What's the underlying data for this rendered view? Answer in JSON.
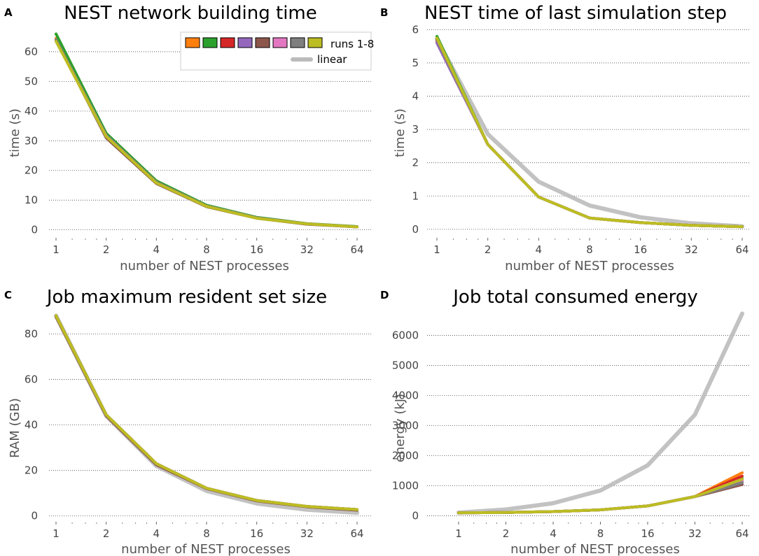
{
  "colors": {
    "runs": [
      "#ff7f0e",
      "#2ca02c",
      "#d62728",
      "#9467bd",
      "#8c564b",
      "#e377c2",
      "#7f7f7f",
      "#bcbd22"
    ],
    "linear": "#bbbbbb",
    "grid": "#444444",
    "axis_text": "#444444"
  },
  "legend": {
    "runs_label": "runs 1-8",
    "linear_label": "linear"
  },
  "chart_data": [
    {
      "panel": "A",
      "type": "line",
      "title": "NEST network building time",
      "xlabel": "number of NEST processes",
      "ylabel": "time (s)",
      "xscale": "log2",
      "x": [
        1,
        2,
        4,
        8,
        16,
        32,
        64
      ],
      "xticklabels": [
        "1",
        "2",
        "4",
        "8",
        "16",
        "32",
        "64"
      ],
      "ylim": [
        -1.5,
        68
      ],
      "yticks": [
        0,
        10,
        20,
        30,
        40,
        50,
        60
      ],
      "grid": "horizontal dotted",
      "legend_position": "top-right",
      "series": [
        {
          "name": "run 1",
          "values": [
            64.5,
            32.0,
            16.0,
            8.0,
            4.0,
            2.0,
            1.0
          ]
        },
        {
          "name": "run 2",
          "values": [
            66.0,
            32.5,
            16.5,
            8.3,
            4.2,
            2.1,
            1.1
          ]
        },
        {
          "name": "run 3",
          "values": [
            64.0,
            31.5,
            16.0,
            8.0,
            4.0,
            2.0,
            1.0
          ]
        },
        {
          "name": "run 4",
          "values": [
            64.0,
            31.8,
            16.0,
            8.0,
            4.0,
            2.0,
            1.0
          ]
        },
        {
          "name": "run 5",
          "values": [
            64.0,
            31.0,
            15.6,
            7.8,
            3.9,
            1.9,
            1.0
          ]
        },
        {
          "name": "run 6",
          "values": [
            64.0,
            31.5,
            16.0,
            8.0,
            4.0,
            2.0,
            1.0
          ]
        },
        {
          "name": "run 7",
          "values": [
            64.0,
            31.5,
            16.0,
            8.0,
            4.0,
            2.0,
            1.0
          ]
        },
        {
          "name": "run 8",
          "values": [
            63.5,
            31.5,
            15.8,
            7.9,
            3.9,
            2.0,
            1.0
          ]
        }
      ]
    },
    {
      "panel": "B",
      "type": "line",
      "title": "NEST time of last simulation step",
      "xlabel": "number of NEST processes",
      "ylabel": "time (s)",
      "xscale": "log2",
      "x": [
        1,
        2,
        4,
        8,
        16,
        32,
        64
      ],
      "xticklabels": [
        "1",
        "2",
        "4",
        "8",
        "16",
        "32",
        "64"
      ],
      "ylim": [
        -0.15,
        6.05
      ],
      "yticks": [
        0,
        1,
        2,
        3,
        4,
        5,
        6
      ],
      "grid": "horizontal dotted",
      "series": [
        {
          "name": "run 1",
          "values": [
            5.7,
            2.55,
            0.97,
            0.34,
            0.2,
            0.12,
            0.08
          ]
        },
        {
          "name": "run 2",
          "values": [
            5.8,
            2.55,
            0.97,
            0.34,
            0.2,
            0.12,
            0.08
          ]
        },
        {
          "name": "run 3",
          "values": [
            5.65,
            2.55,
            0.97,
            0.34,
            0.2,
            0.12,
            0.08
          ]
        },
        {
          "name": "run 4",
          "values": [
            5.6,
            2.55,
            0.97,
            0.34,
            0.2,
            0.12,
            0.08
          ]
        },
        {
          "name": "run 5",
          "values": [
            5.7,
            2.55,
            0.97,
            0.34,
            0.2,
            0.12,
            0.08
          ]
        },
        {
          "name": "run 6",
          "values": [
            5.7,
            2.55,
            0.97,
            0.34,
            0.2,
            0.12,
            0.08
          ]
        },
        {
          "name": "run 7",
          "values": [
            5.7,
            2.55,
            0.97,
            0.34,
            0.2,
            0.12,
            0.08
          ]
        },
        {
          "name": "run 8",
          "values": [
            5.75,
            2.55,
            0.97,
            0.34,
            0.2,
            0.12,
            0.08
          ]
        }
      ],
      "linear": [
        5.72,
        2.86,
        1.43,
        0.715,
        0.36,
        0.18,
        0.09
      ]
    },
    {
      "panel": "C",
      "type": "line",
      "title": "Job maximum resident set size",
      "xlabel": "number of NEST processes",
      "ylabel": "RAM (GB)",
      "xscale": "log2",
      "x": [
        1,
        2,
        4,
        8,
        16,
        32,
        64
      ],
      "xticklabels": [
        "1",
        "2",
        "4",
        "8",
        "16",
        "32",
        "64"
      ],
      "ylim": [
        -1,
        90
      ],
      "yticks": [
        0,
        20,
        40,
        60,
        80
      ],
      "grid": "horizontal dotted",
      "series": [
        {
          "name": "run 1",
          "values": [
            88,
            44.5,
            23.0,
            12.2,
            6.8,
            4.2,
            2.8
          ]
        },
        {
          "name": "run 2",
          "values": [
            88,
            44.5,
            23.0,
            12.2,
            6.8,
            4.2,
            2.8
          ]
        },
        {
          "name": "run 3",
          "values": [
            88,
            44.5,
            23.0,
            12.2,
            6.8,
            4.2,
            2.8
          ]
        },
        {
          "name": "run 4",
          "values": [
            88,
            44.5,
            23.0,
            12.2,
            6.8,
            4.2,
            2.8
          ]
        },
        {
          "name": "run 5",
          "values": [
            87.5,
            44.0,
            22.5,
            12.0,
            6.6,
            4.0,
            2.5
          ]
        },
        {
          "name": "run 6",
          "values": [
            88,
            44.5,
            23.0,
            12.2,
            6.8,
            4.2,
            2.8
          ]
        },
        {
          "name": "run 7",
          "values": [
            88,
            44.5,
            23.0,
            12.2,
            6.8,
            4.2,
            2.8
          ]
        },
        {
          "name": "run 8",
          "values": [
            88,
            44.5,
            23.0,
            12.2,
            6.8,
            4.2,
            2.8
          ]
        }
      ],
      "linear": [
        88,
        44,
        22,
        11,
        5.5,
        2.75,
        1.4
      ]
    },
    {
      "panel": "D",
      "type": "line",
      "title": "Job total consumed energy",
      "xlabel": "number of NEST processes",
      "ylabel": "energy (kJ)",
      "xscale": "log2",
      "x": [
        1,
        2,
        4,
        8,
        16,
        32,
        64
      ],
      "xticklabels": [
        "1",
        "2",
        "4",
        "8",
        "16",
        "32",
        "64"
      ],
      "ylim": [
        -80,
        6800
      ],
      "yticks": [
        0,
        1000,
        2000,
        3000,
        4000,
        5000,
        6000
      ],
      "grid": "horizontal dotted",
      "series": [
        {
          "name": "run 1",
          "values": [
            100,
            110,
            140,
            200,
            330,
            640,
            1430
          ]
        },
        {
          "name": "run 2",
          "values": [
            100,
            110,
            140,
            200,
            330,
            640,
            1250
          ]
        },
        {
          "name": "run 3",
          "values": [
            100,
            110,
            140,
            200,
            330,
            640,
            1320
          ]
        },
        {
          "name": "run 4",
          "values": [
            100,
            110,
            140,
            200,
            330,
            640,
            1150
          ]
        },
        {
          "name": "run 5",
          "values": [
            100,
            110,
            140,
            200,
            330,
            640,
            1040
          ]
        },
        {
          "name": "run 6",
          "values": [
            100,
            110,
            140,
            200,
            330,
            640,
            1180
          ]
        },
        {
          "name": "run 7",
          "values": [
            100,
            110,
            140,
            200,
            330,
            640,
            1100
          ]
        },
        {
          "name": "run 8",
          "values": [
            100,
            110,
            140,
            200,
            330,
            640,
            1220
          ]
        }
      ],
      "linear": [
        105,
        210,
        420,
        840,
        1680,
        3360,
        6720
      ]
    }
  ]
}
